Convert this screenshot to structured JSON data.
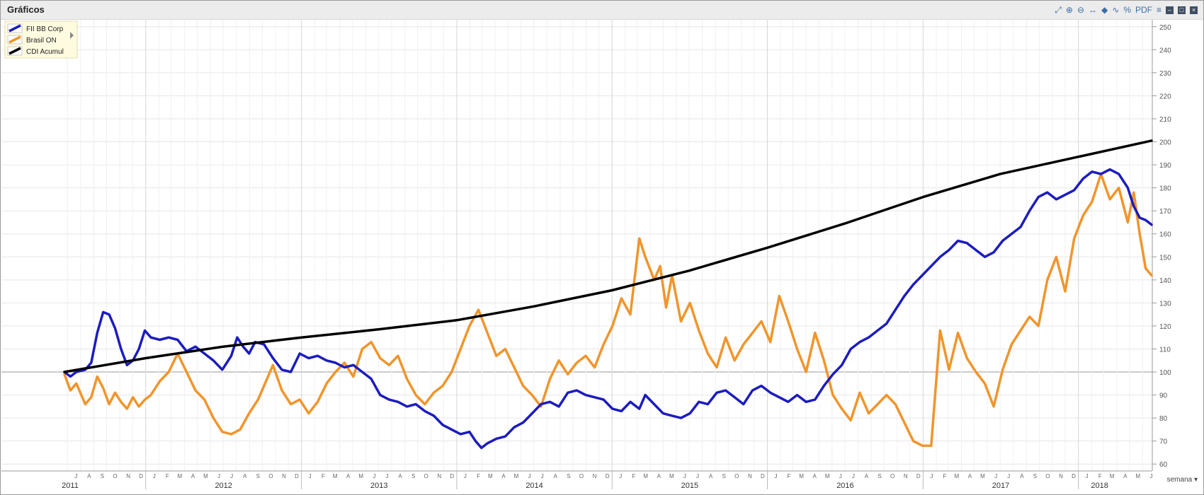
{
  "header": {
    "title": "Gráficos"
  },
  "toolbar": {
    "icons": [
      "expand-icon",
      "zoom-in-icon",
      "zoom-out-icon",
      "pan-icon",
      "tag-icon",
      "chart-type-icon",
      "percent-icon",
      "pdf-icon",
      "menu-icon",
      "minimize-icon",
      "maximize-icon",
      "close-icon"
    ],
    "pdf_label": "PDF",
    "percent_label": "%"
  },
  "footer": {
    "period_label": "semana"
  },
  "chart_data": {
    "type": "line",
    "x_range": [
      "2011-06-24",
      "2018-06-22"
    ],
    "ylim": [
      57,
      253
    ],
    "y_ticks": [
      60,
      70,
      80,
      90,
      100,
      110,
      120,
      130,
      140,
      150,
      160,
      170,
      180,
      190,
      200,
      210,
      220,
      230,
      240,
      250
    ],
    "reference_line": 100,
    "year_labels": [
      "2011",
      "2012",
      "2013",
      "2014",
      "2015",
      "2016",
      "2017",
      "2018"
    ],
    "month_letters": [
      "J",
      "F",
      "M",
      "A",
      "M",
      "J",
      "J",
      "A",
      "S",
      "O",
      "N",
      "D"
    ],
    "legend_position": "top-left",
    "series": [
      {
        "name": "FII BB Corp",
        "color": "#1c1cc0",
        "points": [
          [
            "2011-06-24",
            100
          ],
          [
            "2011-07-08",
            98
          ],
          [
            "2011-07-22",
            100
          ],
          [
            "2011-08-12",
            101
          ],
          [
            "2011-08-26",
            104
          ],
          [
            "2011-09-09",
            117
          ],
          [
            "2011-09-23",
            126
          ],
          [
            "2011-10-07",
            125
          ],
          [
            "2011-10-21",
            119
          ],
          [
            "2011-11-04",
            110
          ],
          [
            "2011-11-18",
            103
          ],
          [
            "2011-12-02",
            105
          ],
          [
            "2011-12-16",
            110
          ],
          [
            "2011-12-30",
            118
          ],
          [
            "2012-01-13",
            115
          ],
          [
            "2012-02-03",
            114
          ],
          [
            "2012-02-24",
            115
          ],
          [
            "2012-03-16",
            114
          ],
          [
            "2012-04-06",
            109
          ],
          [
            "2012-04-27",
            111
          ],
          [
            "2012-05-18",
            108
          ],
          [
            "2012-06-08",
            105
          ],
          [
            "2012-06-29",
            101
          ],
          [
            "2012-07-20",
            107
          ],
          [
            "2012-08-03",
            115
          ],
          [
            "2012-08-17",
            111
          ],
          [
            "2012-08-31",
            108
          ],
          [
            "2012-09-14",
            113
          ],
          [
            "2012-10-05",
            112
          ],
          [
            "2012-10-26",
            106
          ],
          [
            "2012-11-16",
            101
          ],
          [
            "2012-12-07",
            100
          ],
          [
            "2012-12-28",
            108
          ],
          [
            "2013-01-18",
            106
          ],
          [
            "2013-02-08",
            107
          ],
          [
            "2013-03-01",
            105
          ],
          [
            "2013-03-22",
            104
          ],
          [
            "2013-04-12",
            102
          ],
          [
            "2013-05-03",
            103
          ],
          [
            "2013-05-24",
            100
          ],
          [
            "2013-06-14",
            97
          ],
          [
            "2013-07-05",
            90
          ],
          [
            "2013-07-26",
            88
          ],
          [
            "2013-08-16",
            87
          ],
          [
            "2013-09-06",
            85
          ],
          [
            "2013-09-27",
            86
          ],
          [
            "2013-10-18",
            83
          ],
          [
            "2013-11-08",
            81
          ],
          [
            "2013-11-29",
            77
          ],
          [
            "2013-12-20",
            75
          ],
          [
            "2014-01-10",
            73
          ],
          [
            "2014-01-31",
            74
          ],
          [
            "2014-02-14",
            70
          ],
          [
            "2014-02-28",
            67
          ],
          [
            "2014-03-14",
            69
          ],
          [
            "2014-04-04",
            71
          ],
          [
            "2014-04-25",
            72
          ],
          [
            "2014-05-16",
            76
          ],
          [
            "2014-06-06",
            78
          ],
          [
            "2014-06-27",
            82
          ],
          [
            "2014-07-18",
            86
          ],
          [
            "2014-08-08",
            87
          ],
          [
            "2014-08-29",
            85
          ],
          [
            "2014-09-19",
            91
          ],
          [
            "2014-10-10",
            92
          ],
          [
            "2014-10-31",
            90
          ],
          [
            "2014-11-21",
            89
          ],
          [
            "2014-12-12",
            88
          ],
          [
            "2015-01-02",
            84
          ],
          [
            "2015-01-23",
            83
          ],
          [
            "2015-02-13",
            87
          ],
          [
            "2015-03-06",
            84
          ],
          [
            "2015-03-20",
            90
          ],
          [
            "2015-04-10",
            86
          ],
          [
            "2015-05-01",
            82
          ],
          [
            "2015-05-22",
            81
          ],
          [
            "2015-06-12",
            80
          ],
          [
            "2015-07-03",
            82
          ],
          [
            "2015-07-24",
            87
          ],
          [
            "2015-08-14",
            86
          ],
          [
            "2015-09-04",
            91
          ],
          [
            "2015-09-25",
            92
          ],
          [
            "2015-10-16",
            89
          ],
          [
            "2015-11-06",
            86
          ],
          [
            "2015-11-27",
            92
          ],
          [
            "2015-12-18",
            94
          ],
          [
            "2016-01-08",
            91
          ],
          [
            "2016-01-29",
            89
          ],
          [
            "2016-02-19",
            87
          ],
          [
            "2016-03-11",
            90
          ],
          [
            "2016-04-01",
            87
          ],
          [
            "2016-04-22",
            88
          ],
          [
            "2016-05-13",
            94
          ],
          [
            "2016-06-03",
            99
          ],
          [
            "2016-06-24",
            103
          ],
          [
            "2016-07-15",
            110
          ],
          [
            "2016-08-05",
            113
          ],
          [
            "2016-08-26",
            115
          ],
          [
            "2016-09-16",
            118
          ],
          [
            "2016-10-07",
            121
          ],
          [
            "2016-10-28",
            127
          ],
          [
            "2016-11-18",
            133
          ],
          [
            "2016-12-09",
            138
          ],
          [
            "2016-12-30",
            142
          ],
          [
            "2017-01-20",
            146
          ],
          [
            "2017-02-10",
            150
          ],
          [
            "2017-03-03",
            153
          ],
          [
            "2017-03-24",
            157
          ],
          [
            "2017-04-14",
            156
          ],
          [
            "2017-05-05",
            153
          ],
          [
            "2017-05-26",
            150
          ],
          [
            "2017-06-16",
            152
          ],
          [
            "2017-07-07",
            157
          ],
          [
            "2017-07-28",
            160
          ],
          [
            "2017-08-18",
            163
          ],
          [
            "2017-09-08",
            170
          ],
          [
            "2017-09-29",
            176
          ],
          [
            "2017-10-20",
            178
          ],
          [
            "2017-11-10",
            175
          ],
          [
            "2017-12-01",
            177
          ],
          [
            "2017-12-22",
            179
          ],
          [
            "2018-01-12",
            184
          ],
          [
            "2018-02-02",
            187
          ],
          [
            "2018-02-23",
            186
          ],
          [
            "2018-03-16",
            188
          ],
          [
            "2018-04-06",
            186
          ],
          [
            "2018-04-27",
            180
          ],
          [
            "2018-05-11",
            172
          ],
          [
            "2018-05-25",
            167
          ],
          [
            "2018-06-08",
            166
          ],
          [
            "2018-06-22",
            164
          ]
        ]
      },
      {
        "name": "Brasil ON",
        "color": "#f0952b",
        "points": [
          [
            "2011-06-24",
            99
          ],
          [
            "2011-07-08",
            92
          ],
          [
            "2011-07-22",
            95
          ],
          [
            "2011-08-12",
            86
          ],
          [
            "2011-08-26",
            89
          ],
          [
            "2011-09-09",
            98
          ],
          [
            "2011-09-23",
            93
          ],
          [
            "2011-10-07",
            86
          ],
          [
            "2011-10-21",
            91
          ],
          [
            "2011-11-04",
            87
          ],
          [
            "2011-11-18",
            84
          ],
          [
            "2011-12-02",
            89
          ],
          [
            "2011-12-16",
            85
          ],
          [
            "2011-12-30",
            88
          ],
          [
            "2012-01-13",
            90
          ],
          [
            "2012-02-03",
            96
          ],
          [
            "2012-02-24",
            100
          ],
          [
            "2012-03-16",
            108
          ],
          [
            "2012-04-06",
            100
          ],
          [
            "2012-04-27",
            92
          ],
          [
            "2012-05-18",
            88
          ],
          [
            "2012-06-08",
            80
          ],
          [
            "2012-06-29",
            74
          ],
          [
            "2012-07-20",
            73
          ],
          [
            "2012-08-10",
            75
          ],
          [
            "2012-08-31",
            82
          ],
          [
            "2012-09-21",
            88
          ],
          [
            "2012-10-12",
            97
          ],
          [
            "2012-10-26",
            103
          ],
          [
            "2012-11-16",
            92
          ],
          [
            "2012-12-07",
            86
          ],
          [
            "2012-12-28",
            88
          ],
          [
            "2013-01-18",
            82
          ],
          [
            "2013-02-08",
            87
          ],
          [
            "2013-03-01",
            95
          ],
          [
            "2013-03-22",
            100
          ],
          [
            "2013-04-12",
            104
          ],
          [
            "2013-05-03",
            98
          ],
          [
            "2013-05-24",
            110
          ],
          [
            "2013-06-14",
            113
          ],
          [
            "2013-07-05",
            106
          ],
          [
            "2013-07-26",
            103
          ],
          [
            "2013-08-16",
            107
          ],
          [
            "2013-09-06",
            97
          ],
          [
            "2013-09-27",
            90
          ],
          [
            "2013-10-18",
            86
          ],
          [
            "2013-11-08",
            91
          ],
          [
            "2013-11-29",
            94
          ],
          [
            "2013-12-20",
            100
          ],
          [
            "2014-01-10",
            110
          ],
          [
            "2014-01-31",
            120
          ],
          [
            "2014-02-21",
            127
          ],
          [
            "2014-03-14",
            117
          ],
          [
            "2014-04-04",
            107
          ],
          [
            "2014-04-25",
            110
          ],
          [
            "2014-05-16",
            102
          ],
          [
            "2014-06-06",
            94
          ],
          [
            "2014-06-27",
            90
          ],
          [
            "2014-07-18",
            85
          ],
          [
            "2014-08-08",
            97
          ],
          [
            "2014-08-29",
            105
          ],
          [
            "2014-09-19",
            99
          ],
          [
            "2014-10-10",
            104
          ],
          [
            "2014-10-31",
            107
          ],
          [
            "2014-11-21",
            102
          ],
          [
            "2014-12-12",
            112
          ],
          [
            "2015-01-02",
            120
          ],
          [
            "2015-01-23",
            132
          ],
          [
            "2015-02-13",
            125
          ],
          [
            "2015-03-06",
            158
          ],
          [
            "2015-03-20",
            150
          ],
          [
            "2015-04-10",
            140
          ],
          [
            "2015-04-24",
            146
          ],
          [
            "2015-05-08",
            128
          ],
          [
            "2015-05-22",
            142
          ],
          [
            "2015-06-12",
            122
          ],
          [
            "2015-07-03",
            130
          ],
          [
            "2015-07-24",
            118
          ],
          [
            "2015-08-14",
            108
          ],
          [
            "2015-09-04",
            102
          ],
          [
            "2015-09-25",
            115
          ],
          [
            "2015-10-16",
            105
          ],
          [
            "2015-11-06",
            112
          ],
          [
            "2015-11-27",
            117
          ],
          [
            "2015-12-18",
            122
          ],
          [
            "2016-01-08",
            113
          ],
          [
            "2016-01-29",
            133
          ],
          [
            "2016-02-19",
            122
          ],
          [
            "2016-03-11",
            110
          ],
          [
            "2016-04-01",
            100
          ],
          [
            "2016-04-22",
            117
          ],
          [
            "2016-05-13",
            105
          ],
          [
            "2016-06-03",
            90
          ],
          [
            "2016-06-24",
            84
          ],
          [
            "2016-07-15",
            79
          ],
          [
            "2016-08-05",
            91
          ],
          [
            "2016-08-26",
            82
          ],
          [
            "2016-09-16",
            86
          ],
          [
            "2016-10-07",
            90
          ],
          [
            "2016-10-28",
            86
          ],
          [
            "2016-11-18",
            78
          ],
          [
            "2016-12-09",
            70
          ],
          [
            "2016-12-30",
            68
          ],
          [
            "2017-01-20",
            68
          ],
          [
            "2017-02-10",
            118
          ],
          [
            "2017-03-03",
            101
          ],
          [
            "2017-03-24",
            117
          ],
          [
            "2017-04-14",
            106
          ],
          [
            "2017-05-05",
            100
          ],
          [
            "2017-05-26",
            95
          ],
          [
            "2017-06-16",
            85
          ],
          [
            "2017-07-07",
            101
          ],
          [
            "2017-07-28",
            112
          ],
          [
            "2017-08-18",
            118
          ],
          [
            "2017-09-08",
            124
          ],
          [
            "2017-09-29",
            120
          ],
          [
            "2017-10-20",
            140
          ],
          [
            "2017-11-10",
            150
          ],
          [
            "2017-12-01",
            135
          ],
          [
            "2017-12-22",
            158
          ],
          [
            "2018-01-12",
            168
          ],
          [
            "2018-02-02",
            174
          ],
          [
            "2018-02-23",
            186
          ],
          [
            "2018-03-16",
            175
          ],
          [
            "2018-04-06",
            180
          ],
          [
            "2018-04-27",
            165
          ],
          [
            "2018-05-11",
            178
          ],
          [
            "2018-05-25",
            160
          ],
          [
            "2018-06-08",
            145
          ],
          [
            "2018-06-22",
            142
          ]
        ]
      },
      {
        "name": "CDI Acumul",
        "color": "#000000",
        "points": [
          [
            "2011-06-24",
            100
          ],
          [
            "2012-01-01",
            106
          ],
          [
            "2012-07-01",
            111
          ],
          [
            "2013-01-01",
            115
          ],
          [
            "2013-07-01",
            118.5
          ],
          [
            "2014-01-01",
            122.5
          ],
          [
            "2014-07-01",
            128.5
          ],
          [
            "2015-01-01",
            135.5
          ],
          [
            "2015-07-01",
            144
          ],
          [
            "2016-01-01",
            154
          ],
          [
            "2016-07-01",
            164.5
          ],
          [
            "2017-01-01",
            176
          ],
          [
            "2017-07-01",
            186
          ],
          [
            "2018-01-01",
            193.5
          ],
          [
            "2018-06-22",
            200.5
          ]
        ]
      }
    ]
  }
}
